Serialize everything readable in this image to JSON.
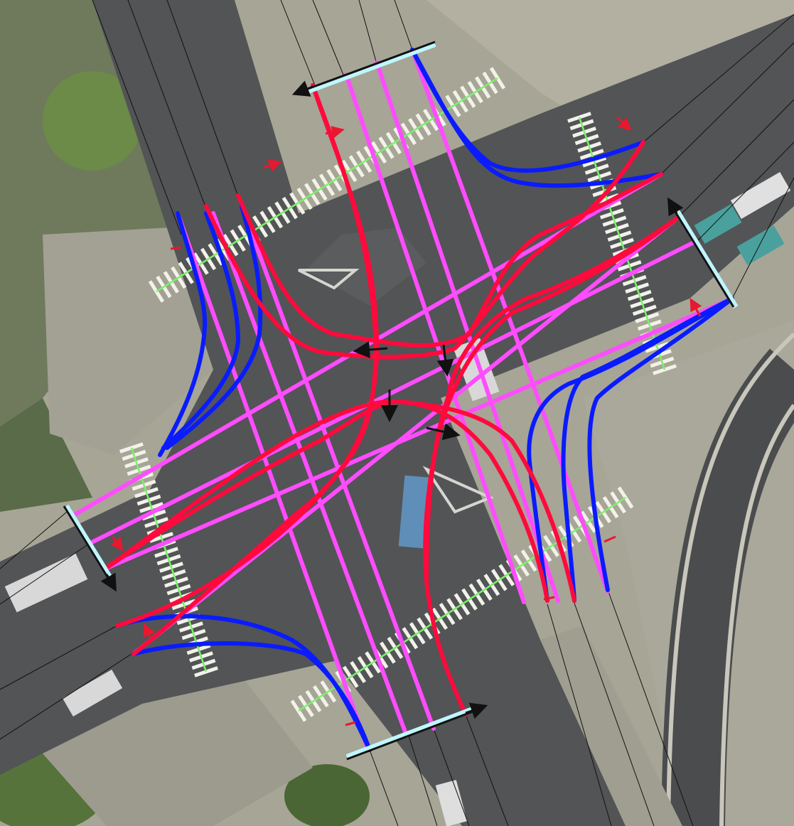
{
  "map": {
    "kind": "aerial intersection with lane movement overlay",
    "colors": {
      "ground_light": "#a7a596",
      "ground_dark": "#6f7064",
      "road": "#4f5153",
      "road_edge": "#5e6062",
      "vegetation": "#5d7a3d",
      "vegetation_dark": "#3f5a2c",
      "crosswalk": "#f2f2ea",
      "crosswalk_center": "#7cf06a",
      "movement_right_turn": "#0a1bff",
      "movement_through": "#ff4cff",
      "movement_left_turn": "#ff0a3c",
      "stop_bar": "#111111",
      "stop_bar_glow": "#bff6ff",
      "small_arrow": "#e8182f",
      "guide_line": "#111111"
    },
    "approaches": [
      "north",
      "east",
      "south",
      "west"
    ],
    "movement_types": [
      "right-turn",
      "through",
      "left-turn"
    ],
    "icons": [
      "direction-arrow-icon",
      "stop-bar-arrow-icon"
    ]
  }
}
